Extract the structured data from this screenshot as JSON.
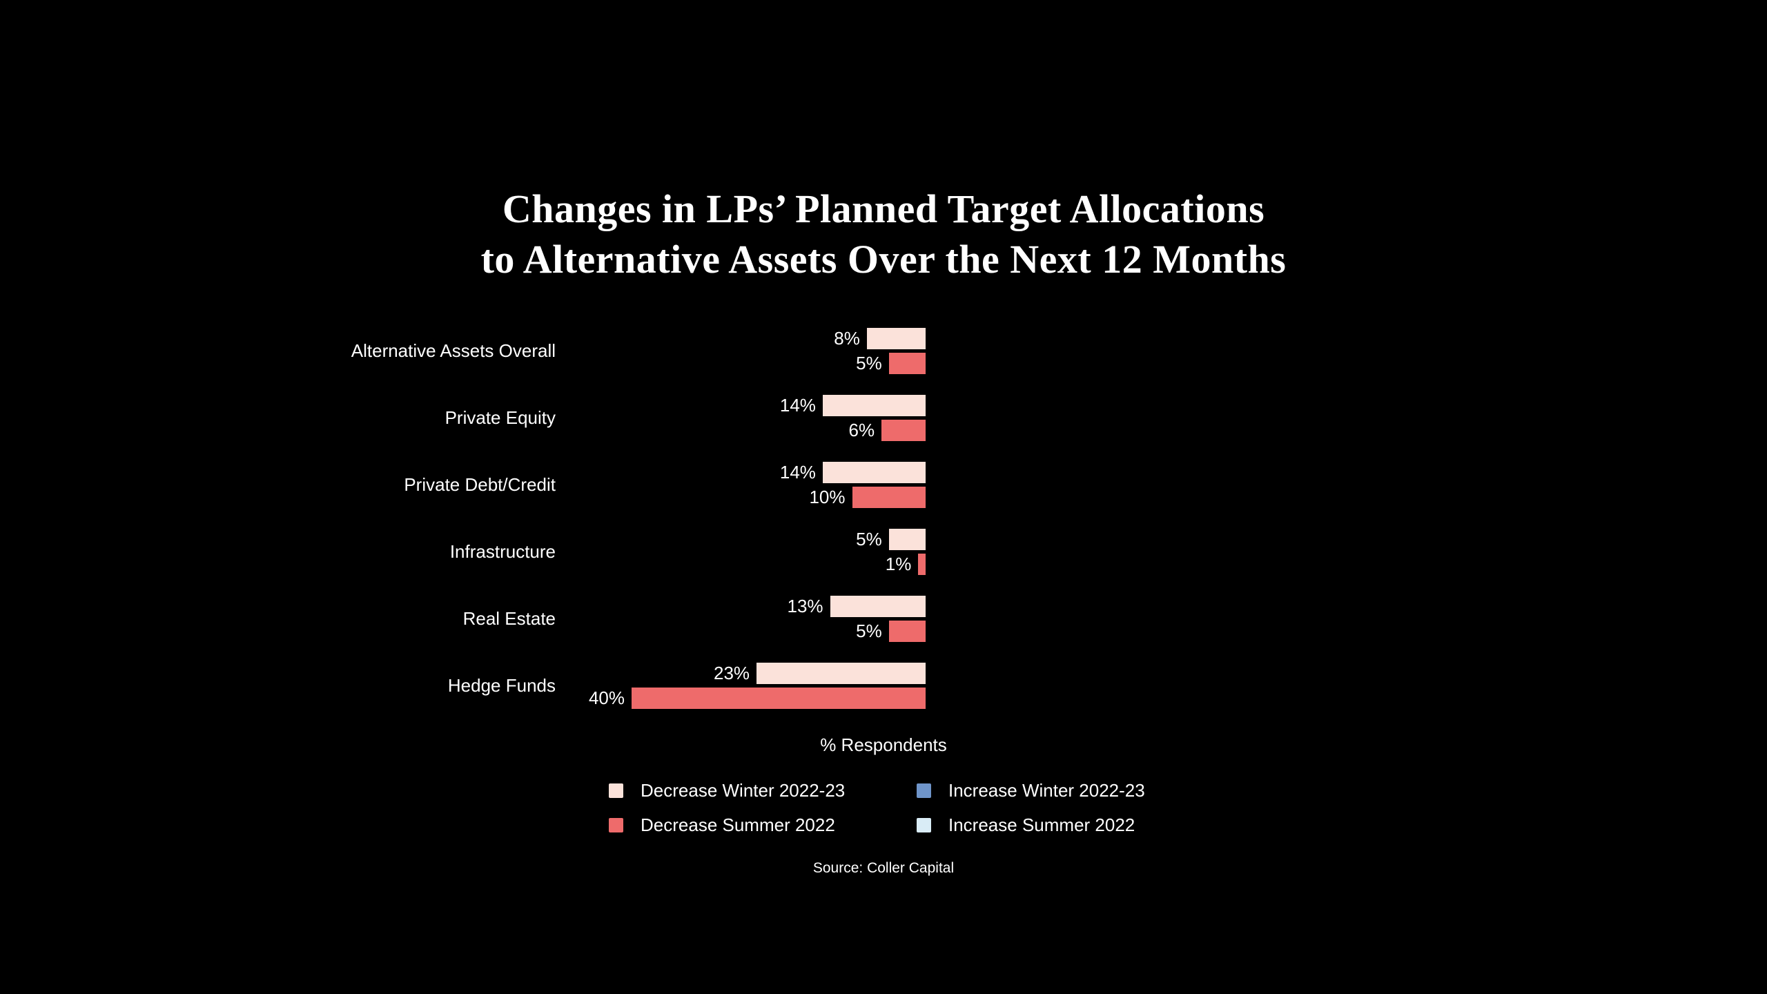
{
  "title": {
    "line1": "Changes in LPs’ Planned Target Allocations",
    "line2": "to Alternative Assets Over the Next 12 Months"
  },
  "chart_data": {
    "type": "bar",
    "orientation": "horizontal",
    "bar_direction": "extending-left-from-right-baseline",
    "title": "Changes in LPs’ Planned Target Allocations to Alternative Assets Over the Next 12 Months",
    "xlabel": "% Respondents",
    "unit": "%",
    "xlim": [
      0,
      40
    ],
    "grid": false,
    "legend_position": "bottom",
    "value_labels": "outside-left-of-bar",
    "categories": [
      "Alternative Assets Overall",
      "Private Equity",
      "Private Debt/Credit",
      "Infrastructure",
      "Real Estate",
      "Hedge Funds"
    ],
    "series": [
      {
        "name": "Decrease Winter 2022-23",
        "color": "#fbe2da",
        "values": [
          8,
          14,
          14,
          5,
          13,
          23
        ]
      },
      {
        "name": "Decrease Summer 2022",
        "color": "#ee6b6b",
        "values": [
          5,
          6,
          10,
          1,
          5,
          40
        ]
      },
      {
        "name": "Increase Winter 2022-23",
        "color": "#6f95ca",
        "values": null
      },
      {
        "name": "Increase Summer 2022",
        "color": "#d9ecf6",
        "values": null
      }
    ]
  },
  "source": "Source: Coller Capital",
  "colors": {
    "background": "#000000",
    "text": "#ffffff"
  }
}
